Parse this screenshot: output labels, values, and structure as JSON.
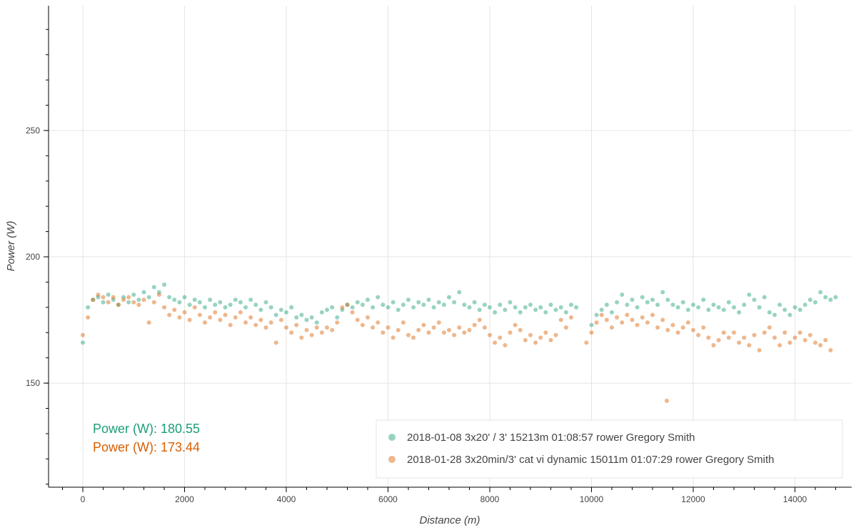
{
  "chart_data": {
    "type": "scatter",
    "xlabel": "Distance (m)",
    "ylabel": "Power (W)",
    "xlim": [
      -674,
      15116
    ],
    "ylim": [
      108.8,
      299.4
    ],
    "xticks": [
      0,
      2000,
      4000,
      6000,
      8000,
      10000,
      12000,
      14000
    ],
    "yticks": [
      150,
      200,
      250
    ],
    "xticks_minor_step": 400,
    "yticks_minor_step": 10,
    "grid": true,
    "legend_position": "bottom-right",
    "series": [
      {
        "name": "2018-01-08 3x20' / 3' 15213m 01:08:57 rower Gregory Smith",
        "color": "#1b9e77",
        "x_start": 0,
        "x_step": 100,
        "y": [
          166,
          180,
          183,
          184,
          182,
          185,
          183,
          181,
          184,
          182,
          185,
          183,
          186,
          184,
          188,
          186,
          189,
          184,
          183,
          182,
          184,
          181,
          183,
          182,
          180,
          183,
          181,
          182,
          180,
          181,
          183,
          182,
          180,
          183,
          181,
          179,
          182,
          180,
          177,
          179,
          178,
          180,
          176,
          177,
          175,
          176,
          174,
          178,
          179,
          180,
          176,
          179,
          181,
          180,
          182,
          181,
          183,
          180,
          184,
          181,
          180,
          182,
          179,
          181,
          183,
          180,
          182,
          181,
          183,
          180,
          182,
          181,
          184,
          182,
          186,
          181,
          180,
          182,
          179,
          181,
          180,
          178,
          181,
          179,
          182,
          180,
          178,
          180,
          181,
          179,
          180,
          178,
          181,
          179,
          180,
          178,
          181,
          180,
          null,
          null,
          173,
          177,
          179,
          181,
          178,
          182,
          185,
          181,
          183,
          180,
          184,
          182,
          183,
          181,
          186,
          183,
          181,
          180,
          182,
          179,
          181,
          180,
          183,
          179,
          181,
          180,
          179,
          182,
          180,
          178,
          181,
          185,
          183,
          180,
          184,
          178,
          177,
          181,
          179,
          177,
          180,
          179,
          181,
          183,
          182,
          186,
          184,
          183,
          184
        ],
        "extra_points": []
      },
      {
        "name": "2018-01-28 3x20min/3' cat vi dynamic 15011m 01:07:29 rower Gregory Smith",
        "color": "#d95f02",
        "x_start": 0,
        "x_step": 100,
        "y": [
          169,
          176,
          183,
          185,
          184,
          182,
          184,
          181,
          183,
          184,
          182,
          181,
          183,
          174,
          182,
          185,
          180,
          177,
          179,
          176,
          178,
          175,
          180,
          177,
          174,
          176,
          178,
          175,
          177,
          173,
          176,
          178,
          174,
          176,
          173,
          175,
          172,
          174,
          166,
          175,
          172,
          170,
          173,
          168,
          171,
          169,
          172,
          170,
          172,
          171,
          174,
          180,
          181,
          178,
          175,
          173,
          176,
          172,
          174,
          170,
          172,
          168,
          171,
          174,
          169,
          168,
          171,
          173,
          170,
          172,
          174,
          170,
          171,
          169,
          172,
          170,
          171,
          173,
          175,
          172,
          169,
          166,
          168,
          165,
          170,
          173,
          171,
          167,
          169,
          166,
          168,
          170,
          167,
          169,
          175,
          172,
          176,
          null,
          null,
          166,
          170,
          174,
          177,
          175,
          172,
          176,
          174,
          177,
          175,
          173,
          176,
          174,
          177,
          172,
          175,
          171,
          173,
          170,
          172,
          174,
          171,
          169,
          172,
          168,
          165,
          167,
          170,
          168,
          170,
          166,
          168,
          165,
          169,
          163,
          170,
          172,
          168,
          165,
          170,
          166,
          168,
          170,
          167,
          169,
          166,
          165,
          167,
          163
        ],
        "extra_points": [
          [
            11480,
            143
          ]
        ]
      }
    ],
    "annotations": [
      {
        "text": "Power (W): 180.55",
        "color": "#1b9e77"
      },
      {
        "text": "Power (W): 173.44",
        "color": "#d95f02"
      }
    ]
  }
}
